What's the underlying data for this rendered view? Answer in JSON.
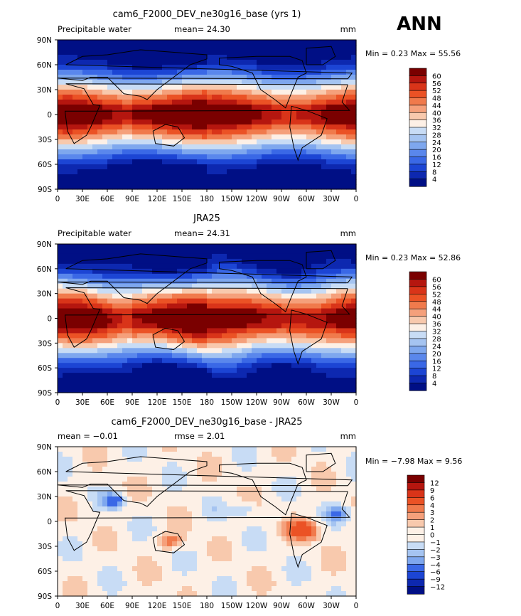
{
  "season": "ANN",
  "chart_data": [
    {
      "type": "heatmap",
      "title": "cam6_F2000_DEV_ne30g16_base (yrs 1)",
      "left_label": "Precipitable water",
      "mean_label": "mean=  24.30",
      "units": "mm",
      "minmax_label": "Min =    0.23  Max =   55.56",
      "min": 0.23,
      "max": 55.56,
      "mean": 24.3,
      "x_ticks": [
        "0",
        "30E",
        "60E",
        "90E",
        "120E",
        "150E",
        "180",
        "150W",
        "120W",
        "90W",
        "60W",
        "30W",
        "0"
      ],
      "y_ticks": [
        "90N",
        "60N",
        "30N",
        "0",
        "30S",
        "60S",
        "90S"
      ],
      "colorbar_levels": [
        "60",
        "56",
        "52",
        "48",
        "44",
        "40",
        "36",
        "32",
        "28",
        "24",
        "20",
        "16",
        "12",
        "8",
        "4"
      ],
      "colorbar_colors": [
        "#7a0000",
        "#b5160f",
        "#d93419",
        "#eb5225",
        "#f07a4c",
        "#f5a07b",
        "#f8c9ad",
        "#fdf0e6",
        "#c8dcf5",
        "#a5c4f1",
        "#7ea7ee",
        "#5a87ec",
        "#3a68e6",
        "#1c45d4",
        "#0d28b0",
        "#000f85"
      ]
    },
    {
      "type": "heatmap",
      "title": "JRA25",
      "left_label": "Precipitable water",
      "mean_label": "mean=  24.31",
      "units": "mm",
      "minmax_label": "Min =    0.23  Max =   52.86",
      "min": 0.23,
      "max": 52.86,
      "mean": 24.31,
      "x_ticks": [
        "0",
        "30E",
        "60E",
        "90E",
        "120E",
        "150E",
        "180",
        "150W",
        "120W",
        "90W",
        "60W",
        "30W",
        "0"
      ],
      "y_ticks": [
        "90N",
        "60N",
        "30N",
        "0",
        "30S",
        "60S",
        "90S"
      ],
      "colorbar_levels": [
        "60",
        "56",
        "52",
        "48",
        "44",
        "40",
        "36",
        "32",
        "28",
        "24",
        "20",
        "16",
        "12",
        "8",
        "4"
      ],
      "colorbar_colors": [
        "#7a0000",
        "#b5160f",
        "#d93419",
        "#eb5225",
        "#f07a4c",
        "#f5a07b",
        "#f8c9ad",
        "#fdf0e6",
        "#c8dcf5",
        "#a5c4f1",
        "#7ea7ee",
        "#5a87ec",
        "#3a68e6",
        "#1c45d4",
        "#0d28b0",
        "#000f85"
      ]
    },
    {
      "type": "heatmap",
      "title": "cam6_F2000_DEV_ne30g16_base - JRA25",
      "left_label": "mean =   −0.01",
      "mean_label": "rmse =     2.01",
      "units": "mm",
      "minmax_label": "Min =   −7.98  Max =     9.56",
      "min": -7.98,
      "max": 9.56,
      "mean": -0.01,
      "rmse": 2.01,
      "x_ticks": [
        "0",
        "30E",
        "60E",
        "90E",
        "120E",
        "150E",
        "180",
        "150W",
        "120W",
        "90W",
        "60W",
        "30W",
        "0"
      ],
      "y_ticks": [
        "90N",
        "60N",
        "30N",
        "0",
        "30S",
        "60S",
        "90S"
      ],
      "colorbar_levels": [
        "12",
        "9",
        "6",
        "4",
        "3",
        "2",
        "1",
        "0",
        "−1",
        "−2",
        "−3",
        "−4",
        "−6",
        "−9",
        "−12"
      ],
      "colorbar_colors": [
        "#7a0000",
        "#b5160f",
        "#d93419",
        "#eb5225",
        "#f07a4c",
        "#f5a07b",
        "#f8c9ad",
        "#fdf0e6",
        "#fdf0e6",
        "#c8dcf5",
        "#a5c4f1",
        "#7ea7ee",
        "#3a68e6",
        "#1c45d4",
        "#0d28b0",
        "#000f85"
      ]
    }
  ]
}
